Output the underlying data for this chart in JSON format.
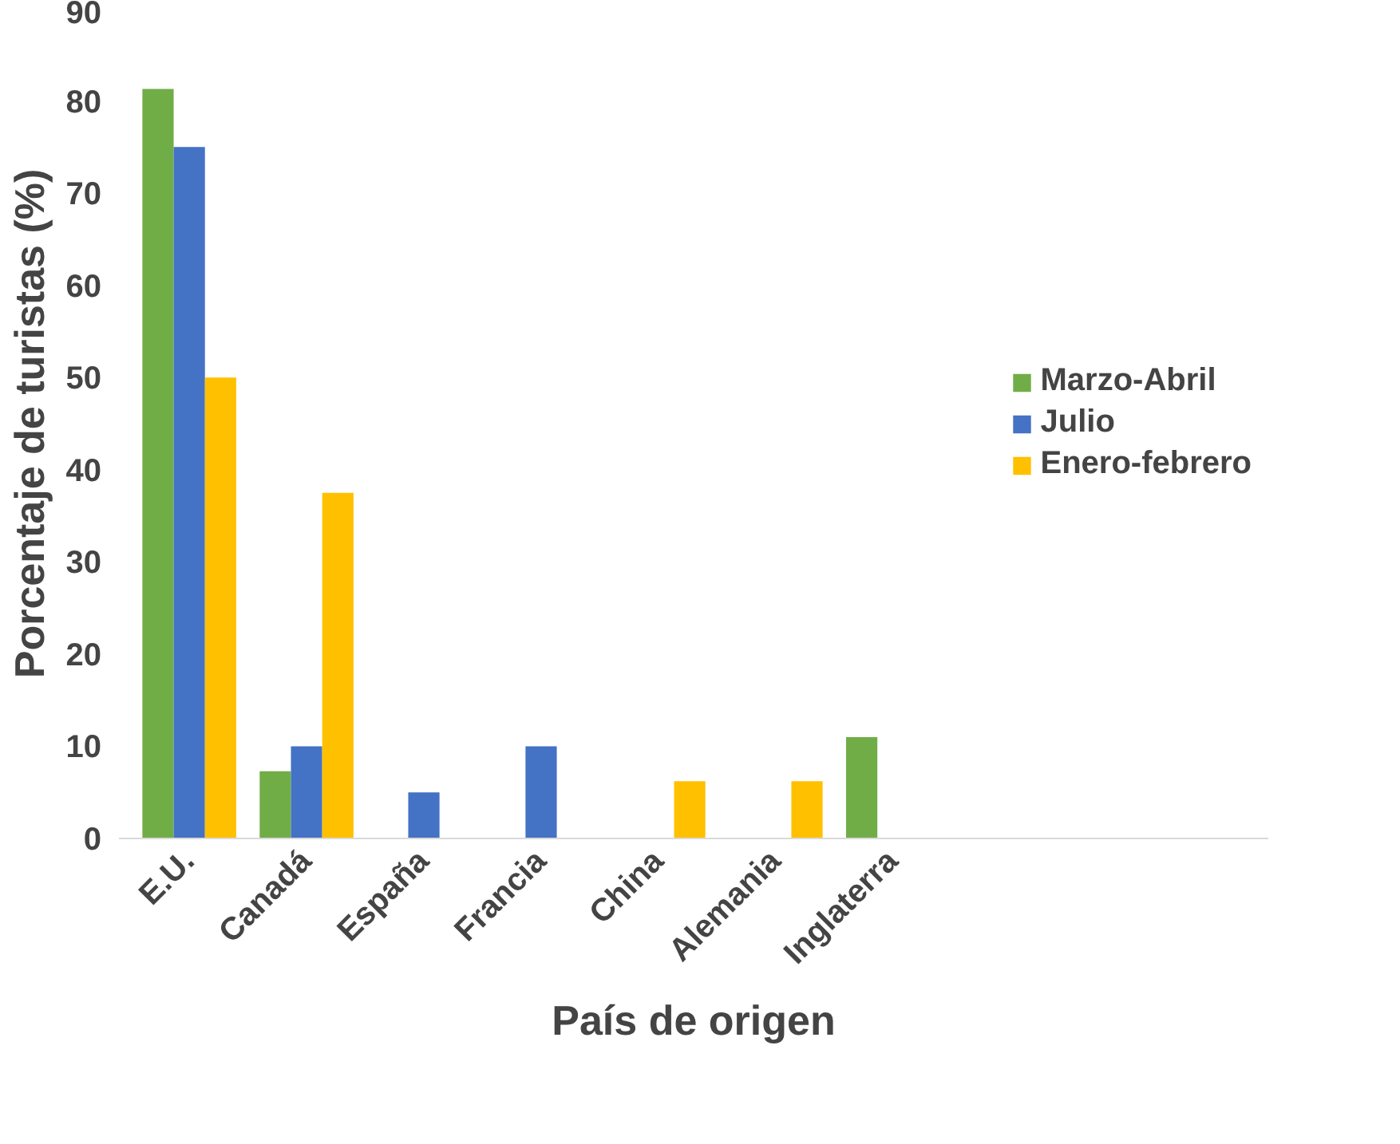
{
  "chart_data": {
    "type": "bar",
    "xlabel": "País de origen",
    "ylabel": "Porcentaje de turistas (%)",
    "categories": [
      "E.U.",
      "Canadá",
      "España",
      "Francia",
      "China",
      "Alemania",
      "Inglaterra"
    ],
    "series": [
      {
        "name": "Marzo-Abril",
        "color": "#70ad47",
        "values": [
          81.3,
          7.3,
          null,
          null,
          null,
          null,
          11
        ]
      },
      {
        "name": "Julio",
        "color": "#4472c4",
        "values": [
          75,
          10,
          5,
          10,
          null,
          null,
          null
        ]
      },
      {
        "name": "Enero-febrero",
        "color": "#ffc000",
        "values": [
          50,
          37.5,
          null,
          null,
          6.2,
          6.2,
          null
        ]
      }
    ],
    "ylim": [
      0,
      90
    ],
    "yticks": [
      0,
      10,
      20,
      30,
      40,
      50,
      60,
      70,
      80,
      90
    ],
    "grid": false,
    "legend": "right"
  }
}
